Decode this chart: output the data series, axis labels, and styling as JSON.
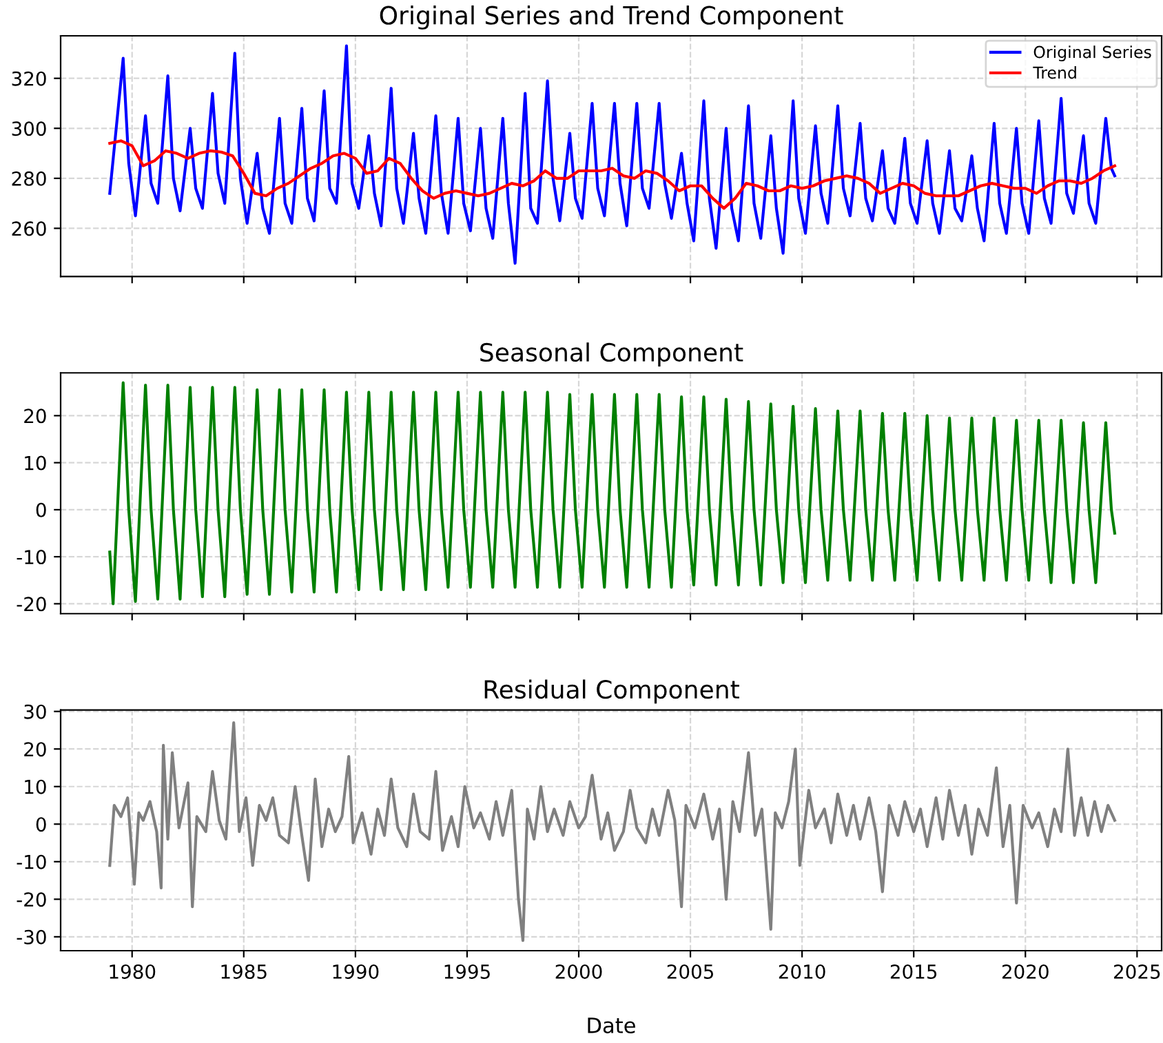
{
  "chart_data": [
    {
      "type": "line",
      "title": "Original Series and Trend Component",
      "xlim": [
        1976.8,
        2026.1
      ],
      "ylim": [
        240.7,
        337
      ],
      "xticks": [
        1980,
        1985,
        1990,
        1995,
        2000,
        2005,
        2010,
        2015,
        2020,
        2025
      ],
      "yticks": [
        260,
        280,
        300,
        320
      ],
      "tick_labels": "y",
      "grid": true,
      "legend": "top right",
      "series": [
        {
          "name": "Original Series",
          "color": "#0000ff",
          "x": [
            1979.0,
            1979.6,
            1979.85,
            1980.15,
            1980.6,
            1980.85,
            1981.15,
            1981.6,
            1981.85,
            1982.15,
            1982.6,
            1982.85,
            1983.15,
            1983.6,
            1983.85,
            1984.15,
            1984.6,
            1984.85,
            1985.15,
            1985.6,
            1985.85,
            1986.15,
            1986.6,
            1986.85,
            1987.15,
            1987.6,
            1987.85,
            1988.15,
            1988.6,
            1988.85,
            1989.15,
            1989.6,
            1989.85,
            1990.15,
            1990.6,
            1990.85,
            1991.15,
            1991.6,
            1991.85,
            1992.15,
            1992.6,
            1992.85,
            1993.15,
            1993.6,
            1993.85,
            1994.15,
            1994.6,
            1994.85,
            1995.15,
            1995.6,
            1995.85,
            1996.15,
            1996.6,
            1996.85,
            1997.15,
            1997.6,
            1997.85,
            1998.15,
            1998.6,
            1998.85,
            1999.15,
            1999.6,
            1999.85,
            2000.15,
            2000.6,
            2000.85,
            2001.15,
            2001.6,
            2001.85,
            2002.15,
            2002.6,
            2002.85,
            2003.15,
            2003.6,
            2003.85,
            2004.15,
            2004.6,
            2004.85,
            2005.15,
            2005.6,
            2005.85,
            2006.15,
            2006.6,
            2006.85,
            2007.15,
            2007.6,
            2007.85,
            2008.15,
            2008.6,
            2008.85,
            2009.15,
            2009.6,
            2009.85,
            2010.15,
            2010.6,
            2010.85,
            2011.15,
            2011.6,
            2011.85,
            2012.15,
            2012.6,
            2012.85,
            2013.15,
            2013.6,
            2013.85,
            2014.15,
            2014.6,
            2014.85,
            2015.15,
            2015.6,
            2015.85,
            2016.15,
            2016.6,
            2016.85,
            2017.15,
            2017.6,
            2017.85,
            2018.15,
            2018.6,
            2018.85,
            2019.15,
            2019.6,
            2019.85,
            2020.15,
            2020.6,
            2020.85,
            2021.15,
            2021.6,
            2021.85,
            2022.15,
            2022.6,
            2022.85,
            2023.15,
            2023.6,
            2023.85,
            2024.0
          ],
          "values": [
            274,
            328,
            286,
            265,
            305,
            278,
            270,
            321,
            280,
            267,
            300,
            276,
            268,
            314,
            282,
            270,
            330,
            280,
            262,
            290,
            268,
            258,
            304,
            270,
            262,
            308,
            272,
            263,
            315,
            276,
            270,
            333,
            278,
            268,
            297,
            274,
            261,
            316,
            276,
            262,
            298,
            272,
            258,
            305,
            274,
            258,
            304,
            270,
            259,
            300,
            268,
            256,
            304,
            270,
            246,
            314,
            268,
            262,
            319,
            280,
            263,
            298,
            272,
            264,
            310,
            276,
            265,
            310,
            278,
            261,
            310,
            276,
            268,
            310,
            278,
            264,
            290,
            270,
            255,
            311,
            272,
            252,
            300,
            268,
            255,
            309,
            270,
            256,
            297,
            268,
            250,
            311,
            272,
            258,
            301,
            274,
            262,
            309,
            276,
            265,
            302,
            272,
            263,
            291,
            268,
            262,
            296,
            270,
            262,
            295,
            270,
            258,
            291,
            268,
            263,
            289,
            268,
            255,
            302,
            270,
            258,
            300,
            270,
            258,
            303,
            272,
            262,
            312,
            274,
            266,
            297,
            270,
            262,
            304,
            284,
            281
          ]
        },
        {
          "name": "Trend",
          "color": "#ff0000",
          "x": [
            1979,
            1979.5,
            1980,
            1980.5,
            1981,
            1981.5,
            1982,
            1982.5,
            1983,
            1983.5,
            1984,
            1984.5,
            1985,
            1985.5,
            1986,
            1986.5,
            1987,
            1987.5,
            1988,
            1988.5,
            1989,
            1989.5,
            1990,
            1990.5,
            1991,
            1991.5,
            1992,
            1992.5,
            1993,
            1993.5,
            1994,
            1994.5,
            1995,
            1995.5,
            1996,
            1996.5,
            1997,
            1997.5,
            1998,
            1998.5,
            1999,
            1999.5,
            2000,
            2000.5,
            2001,
            2001.5,
            2002,
            2002.5,
            2003,
            2003.5,
            2004,
            2004.5,
            2005,
            2005.5,
            2006,
            2006.5,
            2007,
            2007.5,
            2008,
            2008.5,
            2009,
            2009.5,
            2010,
            2010.5,
            2011,
            2011.5,
            2012,
            2012.5,
            2013,
            2013.5,
            2014,
            2014.5,
            2015,
            2015.5,
            2016,
            2016.5,
            2017,
            2017.5,
            2018,
            2018.5,
            2019,
            2019.5,
            2020,
            2020.5,
            2021,
            2021.5,
            2022,
            2022.5,
            2023,
            2023.5,
            2024
          ],
          "values": [
            294,
            295,
            293,
            285,
            287,
            291,
            290,
            288,
            290,
            291,
            290.5,
            289,
            282,
            274,
            273,
            276,
            278,
            281,
            284,
            286,
            289,
            290,
            288,
            282,
            283,
            288,
            286,
            280,
            275,
            272,
            274,
            275,
            274,
            273,
            274,
            276,
            278,
            277,
            279,
            283,
            280,
            280,
            283,
            283,
            283,
            284,
            281,
            280,
            283,
            282,
            279,
            275,
            277,
            277,
            272,
            268,
            272,
            278,
            277,
            275,
            275,
            277,
            276,
            277,
            279,
            280,
            281,
            280,
            278,
            274,
            276,
            278,
            277,
            274,
            273,
            273,
            273,
            275,
            277,
            278,
            277,
            276,
            276,
            274,
            277,
            279,
            279,
            278,
            280,
            283,
            285
          ]
        }
      ]
    },
    {
      "type": "line",
      "title": "Seasonal Component",
      "xlim": [
        1976.8,
        2026.1
      ],
      "ylim": [
        -22.1,
        29.1
      ],
      "xticks": [
        1980,
        1985,
        1990,
        1995,
        2000,
        2005,
        2010,
        2015,
        2020,
        2025
      ],
      "yticks": [
        -20,
        -10,
        0,
        10,
        20
      ],
      "tick_labels": "y",
      "grid": true,
      "series": [
        {
          "color": "#008000",
          "x": [
            1979.0,
            1979.15,
            1979.6,
            1979.85,
            1980.15,
            1980.6,
            1980.85,
            1981.15,
            1981.6,
            1981.85,
            1982.15,
            1982.6,
            1982.85,
            1983.15,
            1983.6,
            1983.85,
            1984.15,
            1984.6,
            1984.85,
            1985.15,
            1985.6,
            1985.85,
            1986.15,
            1986.6,
            1986.85,
            1987.15,
            1987.6,
            1987.85,
            1988.15,
            1988.6,
            1988.85,
            1989.15,
            1989.6,
            1989.85,
            1990.15,
            1990.6,
            1990.85,
            1991.15,
            1991.6,
            1991.85,
            1992.15,
            1992.6,
            1992.85,
            1993.15,
            1993.6,
            1993.85,
            1994.15,
            1994.6,
            1994.85,
            1995.15,
            1995.6,
            1995.85,
            1996.15,
            1996.6,
            1996.85,
            1997.15,
            1997.6,
            1997.85,
            1998.15,
            1998.6,
            1998.85,
            1999.15,
            1999.6,
            1999.85,
            2000.15,
            2000.6,
            2000.85,
            2001.15,
            2001.6,
            2001.85,
            2002.15,
            2002.6,
            2002.85,
            2003.15,
            2003.6,
            2003.85,
            2004.15,
            2004.6,
            2004.85,
            2005.15,
            2005.6,
            2005.85,
            2006.15,
            2006.6,
            2006.85,
            2007.15,
            2007.6,
            2007.85,
            2008.15,
            2008.6,
            2008.85,
            2009.15,
            2009.6,
            2009.85,
            2010.15,
            2010.6,
            2010.85,
            2011.15,
            2011.6,
            2011.85,
            2012.15,
            2012.6,
            2012.85,
            2013.15,
            2013.6,
            2013.85,
            2014.15,
            2014.6,
            2014.85,
            2015.15,
            2015.6,
            2015.85,
            2016.15,
            2016.6,
            2016.85,
            2017.15,
            2017.6,
            2017.85,
            2018.15,
            2018.6,
            2018.85,
            2019.15,
            2019.6,
            2019.85,
            2020.15,
            2020.6,
            2020.85,
            2021.15,
            2021.6,
            2021.85,
            2022.15,
            2022.6,
            2022.85,
            2023.15,
            2023.6,
            2023.85,
            2024.0
          ],
          "values": [
            -9,
            -20,
            27,
            0,
            -19.5,
            26.5,
            0,
            -19,
            26.5,
            0,
            -19,
            26,
            0,
            -18.5,
            26,
            0,
            -18.5,
            26,
            0,
            -18,
            25.5,
            0,
            -18,
            25.5,
            0,
            -17.5,
            25.5,
            0,
            -17.5,
            25.5,
            0,
            -17.5,
            25,
            0,
            -17,
            25,
            0,
            -17,
            25,
            0,
            -17,
            25,
            0,
            -17,
            25,
            0,
            -16.5,
            25,
            0,
            -16.5,
            25,
            0,
            -16.5,
            25,
            0,
            -16.5,
            25,
            0,
            -16.5,
            25,
            0,
            -16.5,
            24.5,
            0,
            -16.5,
            24.5,
            0,
            -16.5,
            24.5,
            0,
            -16.5,
            24.5,
            0,
            -16.5,
            24.5,
            0,
            -16.5,
            24,
            0,
            -16,
            24,
            0,
            -16,
            23.5,
            0,
            -16,
            23,
            0,
            -16,
            22.5,
            0,
            -15.5,
            22,
            0,
            -15.5,
            21.5,
            0,
            -15,
            21,
            0,
            -15,
            21,
            0,
            -15,
            20.5,
            0,
            -15,
            20.5,
            0,
            -15,
            20,
            0,
            -15,
            19.5,
            0,
            -15,
            19.5,
            0,
            -15,
            19.5,
            0,
            -15,
            19,
            0,
            -15,
            19,
            0,
            -15.5,
            19,
            0,
            -15.5,
            18.5,
            0,
            -15.5,
            18.5,
            0,
            -5
          ]
        }
      ]
    },
    {
      "type": "line",
      "title": "Residual Component",
      "xlabel": "Date",
      "xlim": [
        1976.8,
        2026.1
      ],
      "ylim": [
        -33.7,
        30.4
      ],
      "xticks": [
        1980,
        1985,
        1990,
        1995,
        2000,
        2005,
        2010,
        2015,
        2020,
        2025
      ],
      "yticks": [
        -30,
        -20,
        -10,
        0,
        10,
        20,
        30
      ],
      "grid": true,
      "series": [
        {
          "color": "#808080",
          "x": [
            1979.0,
            1979.2,
            1979.5,
            1979.8,
            1980.1,
            1980.3,
            1980.5,
            1980.8,
            1981.1,
            1981.3,
            1981.4,
            1981.6,
            1981.8,
            1982.1,
            1982.5,
            1982.7,
            1982.9,
            1983.3,
            1983.6,
            1983.9,
            1984.2,
            1984.55,
            1984.8,
            1985.1,
            1985.4,
            1985.7,
            1986.0,
            1986.3,
            1986.6,
            1987.0,
            1987.3,
            1987.6,
            1987.9,
            1988.2,
            1988.5,
            1988.8,
            1989.1,
            1989.4,
            1989.7,
            1989.9,
            1990.3,
            1990.7,
            1991.0,
            1991.3,
            1991.6,
            1991.9,
            1992.3,
            1992.6,
            1992.9,
            1993.3,
            1993.6,
            1993.9,
            1994.3,
            1994.6,
            1994.9,
            1995.3,
            1995.6,
            1996.0,
            1996.3,
            1996.6,
            1997.0,
            1997.3,
            1997.5,
            1997.7,
            1998.0,
            1998.3,
            1998.6,
            1998.9,
            1999.3,
            1999.6,
            2000.0,
            2000.3,
            2000.6,
            2001.0,
            2001.3,
            2001.6,
            2002.0,
            2002.3,
            2002.6,
            2003.0,
            2003.3,
            2003.6,
            2004.0,
            2004.3,
            2004.6,
            2004.8,
            2005.2,
            2005.6,
            2006.0,
            2006.3,
            2006.6,
            2006.9,
            2007.2,
            2007.6,
            2007.9,
            2008.2,
            2008.6,
            2008.8,
            2009.1,
            2009.4,
            2009.7,
            2009.9,
            2010.3,
            2010.6,
            2011.0,
            2011.3,
            2011.6,
            2012.0,
            2012.3,
            2012.6,
            2013.0,
            2013.3,
            2013.6,
            2013.9,
            2014.3,
            2014.6,
            2015.0,
            2015.3,
            2015.6,
            2016.0,
            2016.3,
            2016.6,
            2017.0,
            2017.3,
            2017.6,
            2017.9,
            2018.3,
            2018.7,
            2019.0,
            2019.3,
            2019.6,
            2019.9,
            2020.3,
            2020.6,
            2021.0,
            2021.3,
            2021.6,
            2021.9,
            2022.2,
            2022.5,
            2022.8,
            2023.1,
            2023.4,
            2023.7,
            2024.0
          ],
          "values": [
            -11,
            5,
            2,
            7,
            -16,
            3,
            1,
            6,
            -2,
            -17,
            21,
            -4,
            19,
            -1,
            11,
            -22,
            2,
            -2,
            14,
            1,
            -4,
            27,
            -2,
            7,
            -11,
            5,
            1,
            7,
            -3,
            -5,
            10,
            -3,
            -15,
            12,
            -6,
            4,
            -2,
            2,
            18,
            -5,
            3,
            -8,
            4,
            -3,
            12,
            -1,
            -6,
            8,
            -2,
            -4,
            14,
            -7,
            2,
            -6,
            10,
            -1,
            3,
            -4,
            6,
            -3,
            9,
            -20,
            -31,
            4,
            -4,
            10,
            -2,
            4,
            -3,
            6,
            -1,
            2,
            13,
            -4,
            3,
            -7,
            -2,
            9,
            -1,
            -5,
            4,
            -3,
            9,
            1,
            -22,
            5,
            -1,
            8,
            -4,
            4,
            -20,
            6,
            -2,
            19,
            -3,
            4,
            -28,
            3,
            -1,
            6,
            20,
            -11,
            9,
            -1,
            4,
            -5,
            8,
            -3,
            5,
            -4,
            7,
            -2,
            -18,
            5,
            -3,
            6,
            -2,
            4,
            -6,
            7,
            -4,
            9,
            -3,
            5,
            -8,
            4,
            -3,
            15,
            -6,
            5,
            -21,
            5,
            -1,
            3,
            -6,
            4,
            -2,
            20,
            -3,
            7,
            -3,
            6,
            -2,
            5,
            1
          ]
        }
      ]
    }
  ]
}
